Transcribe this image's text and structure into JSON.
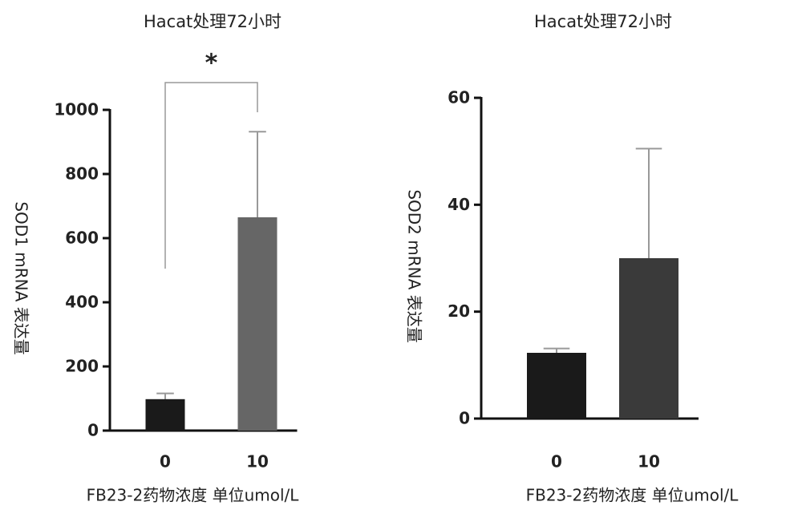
{
  "chart_data": [
    {
      "type": "bar",
      "title": "Hacat处理72小时",
      "y_label": "SOD1 mRNA 表达量",
      "x_label": "FB23-2药物浓度 单位umol/L",
      "categories": [
        "0",
        "10"
      ],
      "values": [
        98,
        665
      ],
      "errors": [
        18,
        267
      ],
      "colors": [
        "#1a1a1a",
        "#666666"
      ],
      "ylim": [
        0,
        1000
      ],
      "yticks": [
        0,
        200,
        400,
        600,
        800,
        1000
      ],
      "annotation": "*"
    },
    {
      "type": "bar",
      "title": "Hacat处理72小时",
      "y_label": "SOD2 mRNA 表达量",
      "x_label": "FB23-2药物浓度 单位umol/L",
      "categories": [
        "0",
        "10"
      ],
      "values": [
        12.3,
        30
      ],
      "errors": [
        0.8,
        20.5
      ],
      "colors": [
        "#1a1a1a",
        "#3a3a3a"
      ],
      "ylim": [
        0,
        60
      ],
      "yticks": [
        0,
        20,
        40,
        60
      ]
    }
  ]
}
